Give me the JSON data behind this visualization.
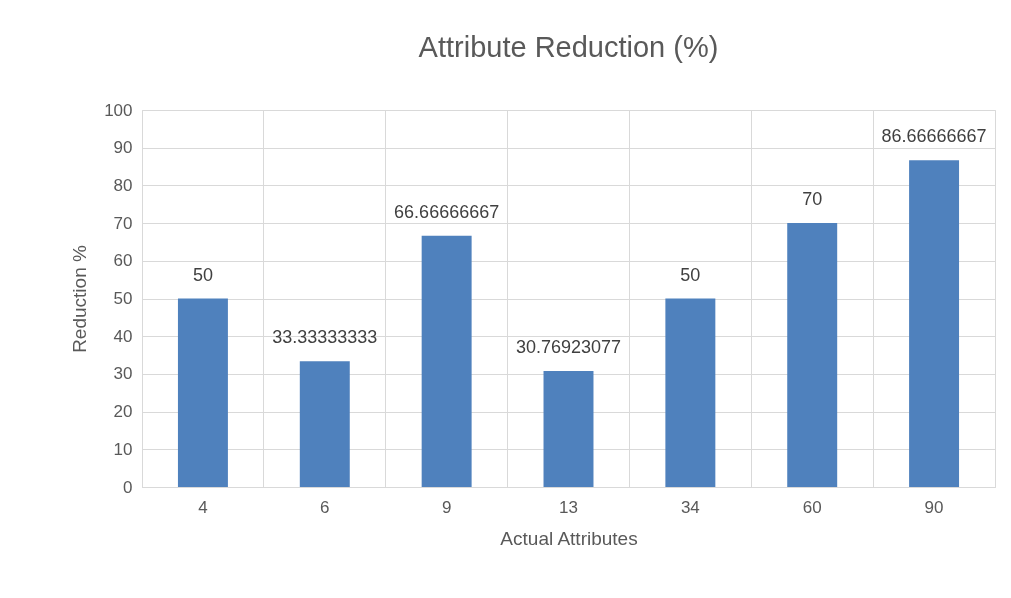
{
  "chart_data": {
    "type": "bar",
    "title": "Attribute Reduction (%)",
    "xlabel": "Actual Attributes",
    "ylabel": "Reduction %",
    "categories": [
      "4",
      "6",
      "9",
      "13",
      "34",
      "60",
      "90"
    ],
    "values": [
      50,
      33.33333333,
      66.66666667,
      30.76923077,
      50,
      70,
      86.66666667
    ],
    "color": "#4f81bd",
    "ylim": [
      0,
      100
    ],
    "yticks": [
      0,
      10,
      20,
      30,
      40,
      50,
      60,
      70,
      80,
      90,
      100
    ],
    "grid": true,
    "data_labels": true
  }
}
